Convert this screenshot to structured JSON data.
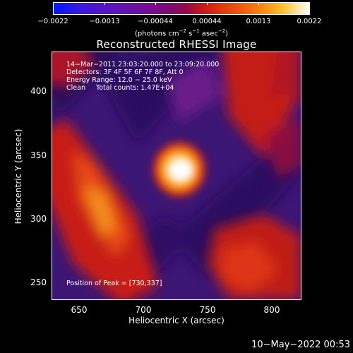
{
  "colorbar": {
    "tick_labels": [
      "−0.0022",
      "−0.0013",
      "−0.00044",
      "0.00044",
      "0.0013",
      "0.0022"
    ],
    "range": [
      -0.0022,
      0.0022
    ],
    "units_text": "(photons cm",
    "units_exp1": "−2",
    "units_mid": " s",
    "units_exp2": "−1",
    "units_mid2": " asec",
    "units_exp3": "−2",
    "units_end": ")"
  },
  "title": "Reconstructed RHESSI Image",
  "info": {
    "line1": "14−Mar−2011 23:03:20.000 to 23:09:20.000",
    "line2": "Detectors: 3F 4F 5F 6F 7F 8F, Att 0",
    "line3": "Energy Range: 12.0 − 25.0 keV",
    "line4": "Clean     Total counts: 1.47E+04"
  },
  "peak_text": "Position of Peak = [730,337]",
  "peak_position": [
    730,
    337
  ],
  "axes": {
    "xlabel": "Heliocentric X (arcsec)",
    "ylabel": "Heliocentric Y (arcsec)",
    "x_ticks": [
      "650",
      "700",
      "750",
      "800"
    ],
    "x_tick_values": [
      650,
      700,
      750,
      800
    ],
    "y_ticks": [
      "250",
      "300",
      "350",
      "400"
    ],
    "y_tick_values": [
      250,
      300,
      350,
      400
    ],
    "xlim": [
      630,
      824
    ],
    "ylim": [
      237,
      432
    ]
  },
  "timestamp": "10−May−2022 00:53",
  "colors": {
    "background": "#000000",
    "negative": "#3a1470",
    "positive": "#e02810",
    "peak": "#ffffff"
  }
}
